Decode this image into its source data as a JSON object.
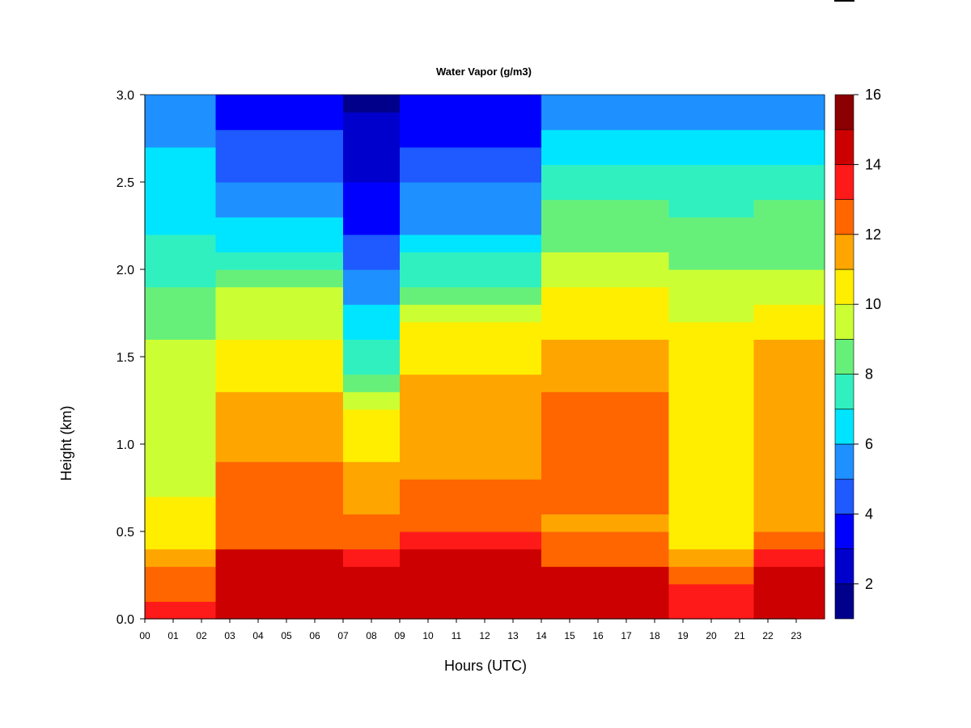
{
  "chart_data": {
    "type": "heatmap",
    "title": "Water Vapor (g/m3)",
    "xlabel": "Hours (UTC)",
    "ylabel": "Height (km)",
    "xlim": [
      0,
      24
    ],
    "ylim": [
      0.0,
      3.0
    ],
    "x_ticks": [
      "00",
      "01",
      "02",
      "03",
      "04",
      "05",
      "06",
      "07",
      "08",
      "09",
      "10",
      "11",
      "12",
      "13",
      "14",
      "15",
      "16",
      "17",
      "18",
      "19",
      "20",
      "21",
      "22",
      "23"
    ],
    "y_ticks": [
      "0.0",
      "0.5",
      "1.0",
      "1.5",
      "2.0",
      "2.5",
      "3.0"
    ],
    "colorbar": {
      "levels": [
        1,
        2,
        3,
        4,
        5,
        6,
        7,
        8,
        9,
        10,
        11,
        12,
        13,
        14,
        15,
        16
      ],
      "tick_labels": [
        "2",
        "4",
        "6",
        "8",
        "10",
        "12",
        "14",
        "16"
      ],
      "colors": [
        "#00008B",
        "#0000CD",
        "#0000FF",
        "#1E5AFF",
        "#1E90FF",
        "#00E5FF",
        "#30F0C0",
        "#66F07A",
        "#CCFF33",
        "#FFEE00",
        "#FFA500",
        "#FF6600",
        "#FF1A1A",
        "#CC0000",
        "#8B0000"
      ]
    },
    "height_km": [
      0.05,
      0.15,
      0.25,
      0.35,
      0.45,
      0.55,
      0.65,
      0.75,
      0.85,
      0.95,
      1.05,
      1.15,
      1.25,
      1.35,
      1.45,
      1.55,
      1.65,
      1.75,
      1.85,
      1.95,
      2.05,
      2.15,
      2.25,
      2.35,
      2.45,
      2.55,
      2.65,
      2.75,
      2.85,
      2.95
    ],
    "hours_utc": [
      0.25,
      0.75,
      1.25,
      1.75,
      2.25,
      2.75,
      3.25,
      3.75,
      4.25,
      4.75,
      5.25,
      5.75,
      6.25,
      6.75,
      7.25,
      7.75,
      8.25,
      8.75,
      9.25,
      9.75,
      10.25,
      10.75,
      11.25,
      11.75,
      12.25,
      12.75,
      13.25,
      13.75,
      14.25,
      14.75,
      15.25,
      15.75,
      16.25,
      16.75,
      17.25,
      17.75,
      18.25,
      18.75,
      19.25,
      19.75,
      20.25,
      20.75,
      21.25,
      21.75,
      22.25,
      22.75,
      23.25,
      23.75
    ],
    "water_vapor_profiles": [
      {
        "hours": [
          0,
          2.6
        ],
        "values": [
          13.5,
          12.5,
          12.5,
          11.0,
          10.5,
          10.2,
          10.0,
          9.8,
          9.6,
          9.5,
          9.5,
          9.4,
          9.3,
          9.2,
          9.2,
          9.0,
          8.8,
          8.5,
          8.0,
          7.5,
          7.2,
          7.0,
          6.9,
          6.8,
          6.6,
          6.4,
          6.0,
          5.6,
          5.3,
          5.0
        ]
      },
      {
        "hours": [
          2.6,
          7.2
        ],
        "values": [
          14.2,
          14.5,
          14.8,
          14.0,
          12.8,
          12.2,
          12.3,
          12.5,
          12.0,
          11.8,
          11.7,
          11.6,
          11.3,
          10.8,
          10.3,
          10.1,
          9.9,
          9.6,
          9.0,
          8.3,
          7.5,
          6.8,
          6.2,
          5.8,
          5.2,
          4.8,
          4.4,
          4.0,
          3.6,
          3.2
        ]
      },
      {
        "hours": [
          7.2,
          8.8
        ],
        "values": [
          14.0,
          14.3,
          14.5,
          13.5,
          12.5,
          12.0,
          11.8,
          11.5,
          11.0,
          10.5,
          10.2,
          10.0,
          9.5,
          8.8,
          7.8,
          7.0,
          6.5,
          6.0,
          5.5,
          5.0,
          4.5,
          4.0,
          3.6,
          3.2,
          3.0,
          2.8,
          2.5,
          2.2,
          2.0,
          1.8
        ]
      },
      {
        "hours": [
          8.8,
          13.9
        ],
        "values": [
          14.0,
          14.3,
          14.5,
          14.0,
          13.0,
          12.3,
          12.0,
          12.0,
          11.8,
          11.7,
          11.6,
          11.5,
          11.4,
          11.0,
          10.6,
          10.2,
          10.0,
          9.4,
          8.6,
          7.8,
          7.0,
          6.4,
          5.9,
          5.4,
          5.0,
          4.6,
          4.2,
          3.8,
          3.5,
          3.2
        ]
      },
      {
        "hours": [
          13.9,
          18.6
        ],
        "values": [
          14.0,
          14.2,
          14.0,
          12.5,
          12.2,
          11.8,
          12.0,
          12.3,
          12.2,
          12.3,
          12.2,
          12.1,
          12.0,
          11.8,
          11.8,
          11.6,
          10.8,
          10.2,
          10.0,
          9.6,
          9.2,
          8.9,
          8.6,
          8.1,
          7.6,
          7.1,
          6.6,
          6.2,
          5.7,
          5.3
        ]
      },
      {
        "hours": [
          18.6,
          21.6
        ],
        "values": [
          13.5,
          13.0,
          12.8,
          11.5,
          10.5,
          10.0,
          10.2,
          10.5,
          10.6,
          10.6,
          10.5,
          10.4,
          10.4,
          10.3,
          10.2,
          10.1,
          10.0,
          9.8,
          9.5,
          9.1,
          8.8,
          8.5,
          8.2,
          7.9,
          7.5,
          7.1,
          6.6,
          6.0,
          5.5,
          5.0
        ]
      },
      {
        "hours": [
          21.6,
          24.0
        ],
        "values": [
          14.2,
          14.4,
          14.6,
          13.8,
          12.5,
          11.5,
          11.0,
          11.2,
          11.5,
          11.7,
          11.6,
          11.5,
          11.5,
          11.3,
          11.8,
          11.5,
          10.8,
          10.0,
          9.5,
          9.2,
          8.9,
          8.6,
          8.3,
          8.0,
          7.6,
          7.2,
          6.7,
          6.2,
          5.8,
          5.4
        ]
      }
    ]
  }
}
